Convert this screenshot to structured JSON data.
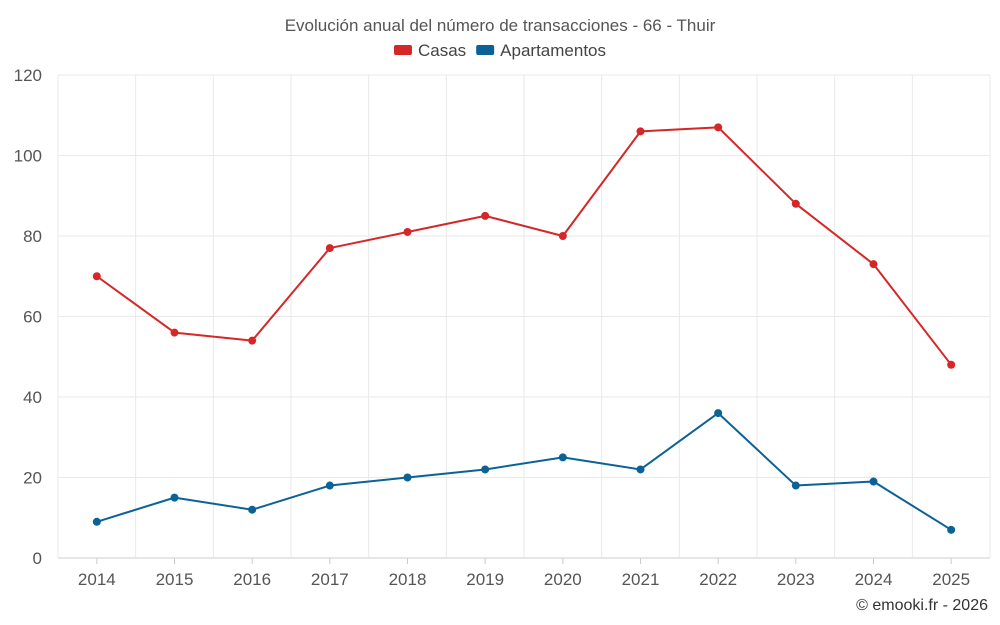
{
  "chart_data": {
    "type": "line",
    "title": "Evolución anual del número de transacciones - 66 - Thuir",
    "categories": [
      "2014",
      "2015",
      "2016",
      "2017",
      "2018",
      "2019",
      "2020",
      "2021",
      "2022",
      "2023",
      "2024",
      "2025"
    ],
    "series": [
      {
        "name": "Casas",
        "color": "#d62728",
        "values": [
          70,
          56,
          54,
          77,
          81,
          85,
          80,
          106,
          107,
          88,
          73,
          48
        ]
      },
      {
        "name": "Apartamentos",
        "color": "#0b6296",
        "values": [
          9,
          15,
          12,
          18,
          20,
          22,
          25,
          22,
          36,
          18,
          19,
          7
        ]
      }
    ],
    "yticks": [
      0,
      20,
      40,
      60,
      80,
      100,
      120
    ],
    "ylim": [
      0,
      120
    ],
    "grid": true,
    "legend": "top-center",
    "xlabel": "",
    "ylabel": ""
  },
  "credit": "© emooki.fr - 2026"
}
